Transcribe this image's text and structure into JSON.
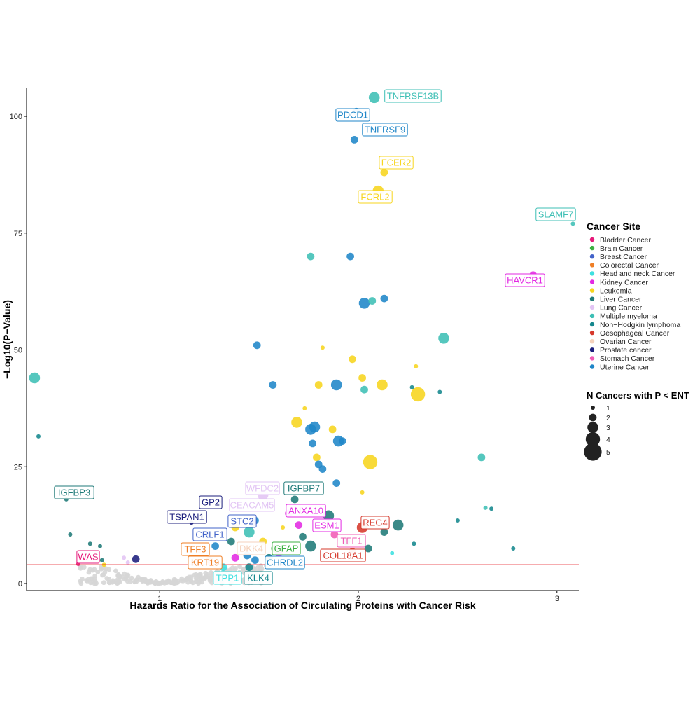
{
  "chart_data": {
    "type": "scatter",
    "xlabel": "Hazards Ratio for the Association of Circulating Proteins with Cancer Risk",
    "ylabel": "−Log10(P−Value)",
    "xlim": [
      0.33,
      3.11
    ],
    "ylim": [
      -1.5,
      106
    ],
    "x_ticks": [
      1,
      2,
      3
    ],
    "y_ticks": [
      0,
      25,
      50,
      75,
      100
    ],
    "grid": false,
    "threshold_line": {
      "y": 4,
      "color": "#e8202a"
    },
    "legend_color": {
      "title": "Cancer Site",
      "placement": "right",
      "entries": [
        {
          "name": "Bladder Cancer",
          "color": "#e6197a"
        },
        {
          "name": "Brain Cancer",
          "color": "#3cb043"
        },
        {
          "name": "Breast Cancer",
          "color": "#4263c9"
        },
        {
          "name": "Colorectal Cancer",
          "color": "#ef7f26"
        },
        {
          "name": "Head and neck Cancer",
          "color": "#3ee0e0"
        },
        {
          "name": "Kidney Cancer",
          "color": "#e32ae3"
        },
        {
          "name": "Leukemia",
          "color": "#f7d51e"
        },
        {
          "name": "Liver Cancer",
          "color": "#1f7a78"
        },
        {
          "name": "Lung Cancer",
          "color": "#e2c4f4"
        },
        {
          "name": "Multiple myeloma",
          "color": "#3dbfb5"
        },
        {
          "name": "Non−Hodgkin lymphoma",
          "color": "#14878d"
        },
        {
          "name": "Oesophageal Cancer",
          "color": "#d6382b"
        },
        {
          "name": "Ovarian Cancer",
          "color": "#f5d2bc"
        },
        {
          "name": "Prostate cancer",
          "color": "#1c1f7d"
        },
        {
          "name": "Stomach Cancer",
          "color": "#f15bb5"
        },
        {
          "name": "Uterine Cancer",
          "color": "#1f86c8"
        }
      ]
    },
    "legend_size": {
      "title": "N Cancers with P < ENT",
      "placement": "right",
      "values": [
        1,
        2,
        3,
        4,
        5
      ]
    },
    "labeled_points": [
      {
        "label": "TNFRSF13B",
        "x": 2.08,
        "y": 104,
        "site": "Multiple myeloma",
        "n": 3
      },
      {
        "label": "PDCD1",
        "x": 1.99,
        "y": 101,
        "site": "Uterine Cancer",
        "n": 2
      },
      {
        "label": "TNFRSF9",
        "x": 1.98,
        "y": 95,
        "site": "Uterine Cancer",
        "n": 2
      },
      {
        "label": "FCER2",
        "x": 2.13,
        "y": 88,
        "site": "Leukemia",
        "n": 2
      },
      {
        "label": "FCRL2",
        "x": 2.1,
        "y": 84,
        "site": "Leukemia",
        "n": 3
      },
      {
        "label": "SLAMF7",
        "x": 3.08,
        "y": 77,
        "site": "Multiple myeloma",
        "n": 1
      },
      {
        "label": "HAVCR1",
        "x": 2.88,
        "y": 66,
        "site": "Kidney Cancer",
        "n": 2
      },
      {
        "label": "IGFBP3",
        "x": 0.53,
        "y": 18,
        "site": "Liver Cancer",
        "n": 1
      },
      {
        "label": "WFDC2",
        "x": 1.52,
        "y": 19,
        "site": "Lung Cancer",
        "n": 3
      },
      {
        "label": "IGFBP7",
        "x": 1.68,
        "y": 18,
        "site": "Liver Cancer",
        "n": 2
      },
      {
        "label": "GP2",
        "x": 1.3,
        "y": 17.5,
        "site": "Prostate cancer",
        "n": 1
      },
      {
        "label": "CEACAM5",
        "x": 1.55,
        "y": 17,
        "site": "Lung Cancer",
        "n": 3
      },
      {
        "label": "TSPAN1",
        "x": 1.16,
        "y": 13,
        "site": "Prostate cancer",
        "n": 1
      },
      {
        "label": "ANXA10",
        "x": 1.65,
        "y": 15,
        "site": "Kidney Cancer",
        "n": 2
      },
      {
        "label": "STC2",
        "x": 1.47,
        "y": 13,
        "site": "Breast Cancer",
        "n": 2
      },
      {
        "label": "ESM1",
        "x": 1.7,
        "y": 12.5,
        "site": "Kidney Cancer",
        "n": 2
      },
      {
        "label": "REG4",
        "x": 2.02,
        "y": 12,
        "site": "Oesophageal Cancer",
        "n": 3
      },
      {
        "label": "CRLF1",
        "x": 1.24,
        "y": 10.5,
        "site": "Breast Cancer",
        "n": 2
      },
      {
        "label": "TFF1",
        "x": 1.88,
        "y": 10.5,
        "site": "Stomach Cancer",
        "n": 2
      },
      {
        "label": "TFF3",
        "x": 1.2,
        "y": 7,
        "site": "Colorectal Cancer",
        "n": 1
      },
      {
        "label": "DKK4",
        "x": 1.43,
        "y": 7.5,
        "site": "Ovarian Cancer",
        "n": 2
      },
      {
        "label": "GFAP",
        "x": 1.58,
        "y": 7.5,
        "site": "Brain Cancer",
        "n": 2
      },
      {
        "label": "WAS",
        "x": 0.59,
        "y": 4.2,
        "site": "Bladder Cancer",
        "n": 1
      },
      {
        "label": "COL18A1",
        "x": 1.97,
        "y": 6.8,
        "site": "Oesophageal Cancer",
        "n": 2
      },
      {
        "label": "KRT19",
        "x": 1.25,
        "y": 5,
        "site": "Colorectal Cancer",
        "n": 2
      },
      {
        "label": "CHRDL2",
        "x": 1.48,
        "y": 5,
        "site": "Uterine Cancer",
        "n": 2
      },
      {
        "label": "TPP1",
        "x": 1.32,
        "y": 3.5,
        "site": "Head and neck Cancer",
        "n": 2
      },
      {
        "label": "KLK4",
        "x": 1.45,
        "y": 3.5,
        "site": "Non−Hodgkin lymphoma",
        "n": 2
      }
    ],
    "unlabeled_points": [
      {
        "x": 0.37,
        "y": 44,
        "site": "Multiple myeloma",
        "n": 3
      },
      {
        "x": 0.39,
        "y": 31.5,
        "site": "Non−Hodgkin lymphoma",
        "n": 1
      },
      {
        "x": 0.55,
        "y": 10.5,
        "site": "Liver Cancer",
        "n": 1
      },
      {
        "x": 0.65,
        "y": 8.5,
        "site": "Liver Cancer",
        "n": 1
      },
      {
        "x": 0.7,
        "y": 8,
        "site": "Liver Cancer",
        "n": 1
      },
      {
        "x": 0.71,
        "y": 5,
        "site": "Liver Cancer",
        "n": 1
      },
      {
        "x": 0.72,
        "y": 4,
        "site": "Leukemia",
        "n": 1
      },
      {
        "x": 0.82,
        "y": 5.5,
        "site": "Lung Cancer",
        "n": 1
      },
      {
        "x": 0.84,
        "y": 4.5,
        "site": "Lung Cancer",
        "n": 1
      },
      {
        "x": 0.88,
        "y": 5.2,
        "site": "Prostate cancer",
        "n": 2
      },
      {
        "x": 1.76,
        "y": 70,
        "site": "Multiple myeloma",
        "n": 2
      },
      {
        "x": 1.96,
        "y": 70,
        "site": "Uterine Cancer",
        "n": 2
      },
      {
        "x": 2.03,
        "y": 60,
        "site": "Uterine Cancer",
        "n": 3
      },
      {
        "x": 2.07,
        "y": 60.5,
        "site": "Multiple myeloma",
        "n": 2
      },
      {
        "x": 2.13,
        "y": 61,
        "site": "Uterine Cancer",
        "n": 2
      },
      {
        "x": 2.43,
        "y": 52.5,
        "site": "Multiple myeloma",
        "n": 3
      },
      {
        "x": 1.49,
        "y": 51,
        "site": "Uterine Cancer",
        "n": 2
      },
      {
        "x": 1.82,
        "y": 50.5,
        "site": "Leukemia",
        "n": 1
      },
      {
        "x": 1.97,
        "y": 48,
        "site": "Leukemia",
        "n": 2
      },
      {
        "x": 2.29,
        "y": 46.5,
        "site": "Leukemia",
        "n": 1
      },
      {
        "x": 1.57,
        "y": 42.5,
        "site": "Uterine Cancer",
        "n": 2
      },
      {
        "x": 1.8,
        "y": 42.5,
        "site": "Leukemia",
        "n": 2
      },
      {
        "x": 1.89,
        "y": 42.5,
        "site": "Uterine Cancer",
        "n": 3
      },
      {
        "x": 2.02,
        "y": 44,
        "site": "Leukemia",
        "n": 2
      },
      {
        "x": 2.12,
        "y": 42.5,
        "site": "Leukemia",
        "n": 3
      },
      {
        "x": 2.03,
        "y": 41.5,
        "site": "Multiple myeloma",
        "n": 2
      },
      {
        "x": 2.27,
        "y": 42,
        "site": "Non−Hodgkin lymphoma",
        "n": 1
      },
      {
        "x": 2.3,
        "y": 40.5,
        "site": "Leukemia",
        "n": 4
      },
      {
        "x": 2.41,
        "y": 41,
        "site": "Non−Hodgkin lymphoma",
        "n": 1
      },
      {
        "x": 1.73,
        "y": 37.5,
        "site": "Leukemia",
        "n": 1
      },
      {
        "x": 1.69,
        "y": 34.5,
        "site": "Leukemia",
        "n": 3
      },
      {
        "x": 1.76,
        "y": 33,
        "site": "Uterine Cancer",
        "n": 3
      },
      {
        "x": 1.78,
        "y": 33.5,
        "site": "Uterine Cancer",
        "n": 3
      },
      {
        "x": 1.87,
        "y": 33,
        "site": "Leukemia",
        "n": 2
      },
      {
        "x": 1.9,
        "y": 30.5,
        "site": "Uterine Cancer",
        "n": 3
      },
      {
        "x": 1.92,
        "y": 30.5,
        "site": "Uterine Cancer",
        "n": 2
      },
      {
        "x": 1.77,
        "y": 30,
        "site": "Uterine Cancer",
        "n": 2
      },
      {
        "x": 1.79,
        "y": 27,
        "site": "Leukemia",
        "n": 2
      },
      {
        "x": 1.8,
        "y": 25.5,
        "site": "Uterine Cancer",
        "n": 2
      },
      {
        "x": 1.82,
        "y": 24.5,
        "site": "Uterine Cancer",
        "n": 2
      },
      {
        "x": 2.06,
        "y": 26,
        "site": "Leukemia",
        "n": 4
      },
      {
        "x": 1.89,
        "y": 21.5,
        "site": "Uterine Cancer",
        "n": 2
      },
      {
        "x": 2.02,
        "y": 19.5,
        "site": "Leukemia",
        "n": 1
      },
      {
        "x": 2.62,
        "y": 27,
        "site": "Multiple myeloma",
        "n": 2
      },
      {
        "x": 2.64,
        "y": 16.2,
        "site": "Multiple myeloma",
        "n": 1
      },
      {
        "x": 2.67,
        "y": 16,
        "site": "Non−Hodgkin lymphoma",
        "n": 1
      },
      {
        "x": 2.5,
        "y": 13.5,
        "site": "Non−Hodgkin lymphoma",
        "n": 1
      },
      {
        "x": 2.78,
        "y": 7.5,
        "site": "Non−Hodgkin lymphoma",
        "n": 1
      },
      {
        "x": 2.17,
        "y": 6.5,
        "site": "Head and neck Cancer",
        "n": 1
      },
      {
        "x": 2.28,
        "y": 8.5,
        "site": "Non−Hodgkin lymphoma",
        "n": 1
      },
      {
        "x": 2.2,
        "y": 12.5,
        "site": "Liver Cancer",
        "n": 3
      },
      {
        "x": 2.13,
        "y": 11,
        "site": "Liver Cancer",
        "n": 2
      },
      {
        "x": 1.85,
        "y": 14.5,
        "site": "Liver Cancer",
        "n": 3
      },
      {
        "x": 1.72,
        "y": 10,
        "site": "Liver Cancer",
        "n": 2
      },
      {
        "x": 1.76,
        "y": 8,
        "site": "Liver Cancer",
        "n": 3
      },
      {
        "x": 1.62,
        "y": 12,
        "site": "Leukemia",
        "n": 1
      },
      {
        "x": 1.38,
        "y": 12,
        "site": "Leukemia",
        "n": 2
      },
      {
        "x": 1.45,
        "y": 11,
        "site": "Multiple myeloma",
        "n": 3
      },
      {
        "x": 1.48,
        "y": 13.5,
        "site": "Uterine Cancer",
        "n": 2
      },
      {
        "x": 1.36,
        "y": 9,
        "site": "Liver Cancer",
        "n": 2
      },
      {
        "x": 1.28,
        "y": 8,
        "site": "Uterine Cancer",
        "n": 2
      },
      {
        "x": 1.52,
        "y": 9,
        "site": "Leukemia",
        "n": 2
      },
      {
        "x": 1.94,
        "y": 9,
        "site": "Liver Cancer",
        "n": 2
      },
      {
        "x": 2.05,
        "y": 7.5,
        "site": "Liver Cancer",
        "n": 2
      },
      {
        "x": 1.83,
        "y": 6,
        "site": "Liver Cancer",
        "n": 1
      },
      {
        "x": 1.38,
        "y": 5.5,
        "site": "Kidney Cancer",
        "n": 2
      },
      {
        "x": 1.44,
        "y": 6,
        "site": "Uterine Cancer",
        "n": 2
      },
      {
        "x": 1.55,
        "y": 5.5,
        "site": "Liver Cancer",
        "n": 2
      },
      {
        "x": 1.6,
        "y": 6.5,
        "site": "Kidney Cancer",
        "n": 2
      }
    ],
    "insignificant_points_note": ""
  }
}
